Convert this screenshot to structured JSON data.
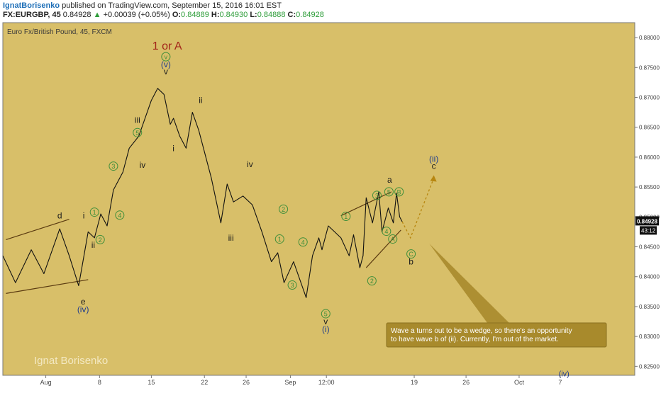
{
  "header": {
    "author": "IgnatBorisenko",
    "published": "published on TradingView.com, September 15, 2016 16:01 EST",
    "symbol": "FX:EURGBP, 45",
    "last": "0.84928",
    "change_arrow": "▲",
    "change": "+0.00039 (+0.05%)",
    "ohlc": [
      {
        "k": "O:",
        "v": "0.84889"
      },
      {
        "k": "H:",
        "v": "0.84930"
      },
      {
        "k": "L:",
        "v": "0.84888"
      },
      {
        "k": "C:",
        "v": "0.84928"
      }
    ]
  },
  "chart_data": {
    "type": "line",
    "instrument_label": "Euro Fx/British Pound, 45, FXCM",
    "watermark": "Ignat Borisenko",
    "background": "#d8bf69",
    "price_tag": "0.84928",
    "countdown": "43:12",
    "y_ticks": [
      "0.88000",
      "0.87500",
      "0.87000",
      "0.86500",
      "0.86000",
      "0.85500",
      "0.85000",
      "0.84500",
      "0.84000",
      "0.83500",
      "0.83000",
      "0.82500"
    ],
    "x_ticks": [
      "Aug",
      "8",
      "15",
      "22",
      "26",
      "Sep",
      "12:00",
      "19",
      "26",
      "Oct",
      "7"
    ],
    "ylim": [
      0.8235,
      0.8825
    ],
    "x_tick_pos": [
      0.068,
      0.153,
      0.235,
      0.319,
      0.385,
      0.455,
      0.512,
      0.651,
      0.733,
      0.817,
      0.882
    ],
    "x": [
      0.0,
      0.02,
      0.045,
      0.065,
      0.09,
      0.105,
      0.12,
      0.125,
      0.135,
      0.145,
      0.155,
      0.165,
      0.175,
      0.19,
      0.2,
      0.215,
      0.225,
      0.235,
      0.245,
      0.255,
      0.265,
      0.27,
      0.28,
      0.29,
      0.3,
      0.31,
      0.32,
      0.33,
      0.345,
      0.355,
      0.365,
      0.38,
      0.395,
      0.41,
      0.425,
      0.435,
      0.445,
      0.46,
      0.47,
      0.48,
      0.49,
      0.5,
      0.505,
      0.515,
      0.525,
      0.535,
      0.548,
      0.555,
      0.565,
      0.57,
      0.575,
      0.585,
      0.595,
      0.6,
      0.61,
      0.618,
      0.623,
      0.628,
      0.632
    ],
    "y": [
      0.8435,
      0.839,
      0.8445,
      0.8405,
      0.848,
      0.8435,
      0.8385,
      0.8415,
      0.8475,
      0.8465,
      0.8505,
      0.8485,
      0.8545,
      0.8575,
      0.8615,
      0.8635,
      0.8665,
      0.8695,
      0.8715,
      0.8705,
      0.8655,
      0.8665,
      0.8635,
      0.8615,
      0.8675,
      0.8645,
      0.8605,
      0.8565,
      0.849,
      0.8555,
      0.8525,
      0.8535,
      0.852,
      0.8475,
      0.8425,
      0.844,
      0.839,
      0.8425,
      0.8395,
      0.8365,
      0.8435,
      0.8465,
      0.8445,
      0.8485,
      0.8475,
      0.8465,
      0.8435,
      0.847,
      0.8415,
      0.8435,
      0.8532,
      0.849,
      0.8542,
      0.8475,
      0.8515,
      0.849,
      0.854,
      0.85,
      0.8492
    ],
    "wedge_lines": [
      {
        "x": [
          0.005,
          0.105
        ],
        "y": [
          0.8462,
          0.8496
        ]
      },
      {
        "x": [
          0.005,
          0.135
        ],
        "y": [
          0.8372,
          0.8395
        ]
      },
      {
        "x": [
          0.535,
          0.615
        ],
        "y": [
          0.8502,
          0.8542
        ]
      },
      {
        "x": [
          0.575,
          0.63
        ],
        "y": [
          0.8415,
          0.8478
        ]
      }
    ],
    "projection": {
      "x": [
        0.632,
        0.645,
        0.682
      ],
      "y": [
        0.8492,
        0.8465,
        0.8565
      ]
    },
    "callout_tip": {
      "x": 0.675,
      "y": 0.8455
    },
    "labels": [
      {
        "t": "1 or A",
        "x": 0.26,
        "y": 0.8785,
        "c": "#a3261a",
        "s": 16
      },
      {
        "t": "(v)",
        "x": 0.258,
        "y": 0.8755,
        "c": "#1f3c8c",
        "s": 12
      },
      {
        "t": "v",
        "x": 0.258,
        "y": 0.8743,
        "c": "#1b1b1b",
        "s": 12
      },
      {
        "t": "ii",
        "x": 0.313,
        "y": 0.8695,
        "c": "#1b1b1b",
        "s": 12
      },
      {
        "t": "iii",
        "x": 0.213,
        "y": 0.8662,
        "c": "#1b1b1b",
        "s": 12
      },
      {
        "t": "i",
        "x": 0.27,
        "y": 0.8615,
        "c": "#1b1b1b",
        "s": 12
      },
      {
        "t": "iv",
        "x": 0.221,
        "y": 0.8587,
        "c": "#1b1b1b",
        "s": 12
      },
      {
        "t": "iv",
        "x": 0.391,
        "y": 0.8588,
        "c": "#1b1b1b",
        "s": 12
      },
      {
        "t": "iii",
        "x": 0.361,
        "y": 0.8465,
        "c": "#1b1b1b",
        "s": 12
      },
      {
        "t": "d",
        "x": 0.09,
        "y": 0.8502,
        "c": "#1b1b1b",
        "s": 12
      },
      {
        "t": "i",
        "x": 0.128,
        "y": 0.8502,
        "c": "#1b1b1b",
        "s": 12
      },
      {
        "t": "ii",
        "x": 0.143,
        "y": 0.8453,
        "c": "#1b1b1b",
        "s": 12
      },
      {
        "t": "e",
        "x": 0.127,
        "y": 0.8358,
        "c": "#1b1b1b",
        "s": 12
      },
      {
        "t": "(iv)",
        "x": 0.127,
        "y": 0.8345,
        "c": "#1f3c8c",
        "s": 12
      },
      {
        "t": "v",
        "x": 0.511,
        "y": 0.8325,
        "c": "#1b1b1b",
        "s": 12
      },
      {
        "t": "(i)",
        "x": 0.511,
        "y": 0.8312,
        "c": "#1f3c8c",
        "s": 12
      },
      {
        "t": "a",
        "x": 0.612,
        "y": 0.8562,
        "c": "#1b1b1b",
        "s": 12
      },
      {
        "t": "(ii)",
        "x": 0.682,
        "y": 0.8597,
        "c": "#1f3c8c",
        "s": 12
      },
      {
        "t": "c",
        "x": 0.682,
        "y": 0.8585,
        "c": "#1b1b1b",
        "s": 12
      },
      {
        "t": "b",
        "x": 0.646,
        "y": 0.8425,
        "c": "#1b1b1b",
        "s": 12
      },
      {
        "t": "(iv)",
        "x": 0.888,
        "y": 0.8238,
        "c": "#1f3c8c",
        "s": 11
      }
    ],
    "circles": [
      {
        "t": "v",
        "x": 0.258,
        "y": 0.8768
      },
      {
        "t": "5",
        "x": 0.213,
        "y": 0.8641
      },
      {
        "t": "3",
        "x": 0.175,
        "y": 0.8585
      },
      {
        "t": "1",
        "x": 0.145,
        "y": 0.8508
      },
      {
        "t": "4",
        "x": 0.185,
        "y": 0.8503
      },
      {
        "t": "2",
        "x": 0.154,
        "y": 0.8462
      },
      {
        "t": "2",
        "x": 0.444,
        "y": 0.8513
      },
      {
        "t": "1",
        "x": 0.438,
        "y": 0.8463
      },
      {
        "t": "4",
        "x": 0.475,
        "y": 0.8458
      },
      {
        "t": "3",
        "x": 0.458,
        "y": 0.8386
      },
      {
        "t": "5",
        "x": 0.511,
        "y": 0.8338
      },
      {
        "t": "1",
        "x": 0.543,
        "y": 0.8501
      },
      {
        "t": "2",
        "x": 0.584,
        "y": 0.8393
      },
      {
        "t": "3",
        "x": 0.592,
        "y": 0.8536
      },
      {
        "t": "5",
        "x": 0.611,
        "y": 0.8542
      },
      {
        "t": "B",
        "x": 0.627,
        "y": 0.8542
      },
      {
        "t": "4",
        "x": 0.607,
        "y": 0.8476
      },
      {
        "t": "A",
        "x": 0.617,
        "y": 0.8463
      },
      {
        "t": "C",
        "x": 0.646,
        "y": 0.8438
      }
    ],
    "callout": {
      "lines": [
        "Wave a turns out to be a wedge, so there's an opportunity",
        "to have wave b of (ii). Currently, I'm out of the market."
      ]
    }
  }
}
